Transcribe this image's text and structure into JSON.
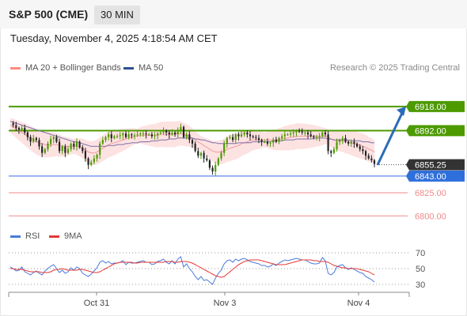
{
  "header": {
    "symbol": "S&P 500 (CME)",
    "timeframe": "30 MIN",
    "datetime": "Tuesday, November 4, 2025 4:18:54 AM CET"
  },
  "legend": {
    "items": [
      {
        "label": "MA 20 + Bollinger Bands",
        "color": "#ff8a80"
      },
      {
        "label": "MA 50",
        "color": "#2e4f8f"
      }
    ],
    "research": "Research © 2025 Trading Central"
  },
  "rsi_legend": {
    "items": [
      {
        "label": "RSI",
        "color": "#4a7bdc"
      },
      {
        "label": "9MA",
        "color": "#e53935"
      }
    ]
  },
  "colors": {
    "resistance": "#4c9a00",
    "support_blue": "#2f6fdc",
    "support_red": "#f08a8a",
    "last_price": "#333333",
    "arrow": "#2b6cb8",
    "band": "#fde2e2",
    "ma20": "#f19b9b",
    "ma50": "#7e6fa8",
    "candle_up": "#4c9a00",
    "candle_down": "#222222"
  },
  "chart_data": [
    {
      "type": "candlestick",
      "title": "S&P 500 (CME)",
      "ylim": [
        6790,
        6935
      ],
      "x_labels": [
        "Oct 31",
        "Nov 3",
        "Nov 4"
      ],
      "last_price": 6855.25,
      "levels": [
        {
          "value": 6918.0,
          "label": "6918.00",
          "kind": "resistance"
        },
        {
          "value": 6892.0,
          "label": "6892.00",
          "kind": "resistance"
        },
        {
          "value": 6855.25,
          "label": "6855.25",
          "kind": "last"
        },
        {
          "value": 6843.0,
          "label": "6843.00",
          "kind": "support"
        },
        {
          "value": 6825.0,
          "label": "6825.00",
          "kind": "support-minor"
        },
        {
          "value": 6800.0,
          "label": "6800.00",
          "kind": "support-minor"
        }
      ],
      "arrow": {
        "from": 6855,
        "to": 6918
      },
      "series": [
        {
          "name": "Price",
          "values": [
            6900,
            6898,
            6895,
            6893,
            6895,
            6890,
            6885,
            6880,
            6884,
            6882,
            6875,
            6868,
            6872,
            6878,
            6883,
            6885,
            6880,
            6870,
            6875,
            6868,
            6872,
            6878,
            6875,
            6880,
            6874,
            6870,
            6862,
            6855,
            6858,
            6862,
            6866,
            6878,
            6882,
            6885,
            6888,
            6884,
            6886,
            6886,
            6887,
            6889,
            6885,
            6888,
            6887,
            6887,
            6888,
            6889,
            6889,
            6888,
            6888,
            6886,
            6887,
            6889,
            6890,
            6892,
            6890,
            6888,
            6890,
            6888,
            6893,
            6896,
            6885,
            6888,
            6882,
            6878,
            6870,
            6865,
            6868,
            6862,
            6860,
            6852,
            6848,
            6855,
            6862,
            6868,
            6878,
            6884,
            6885,
            6882,
            6888,
            6886,
            6888,
            6890,
            6888,
            6886,
            6885,
            6884,
            6882,
            6880,
            6880,
            6878,
            6879,
            6882,
            6880,
            6884,
            6886,
            6888,
            6888,
            6889,
            6890,
            6892,
            6891,
            6890,
            6890,
            6888,
            6886,
            6885,
            6885,
            6886,
            6890,
            6888,
            6870,
            6868,
            6872,
            6880,
            6882,
            6884,
            6880,
            6878,
            6880,
            6878,
            6875,
            6872,
            6870,
            6865,
            6862,
            6860,
            6856
          ]
        },
        {
          "name": "MA 20",
          "values": [
            6898,
            6896,
            6894,
            6892,
            6890,
            6888,
            6886,
            6884,
            6882,
            6880,
            6879,
            6878,
            6877,
            6877,
            6877,
            6877,
            6877,
            6876,
            6875,
            6875,
            6875,
            6875,
            6875,
            6875,
            6874,
            6873,
            6871,
            6869,
            6868,
            6868,
            6869,
            6871,
            6873,
            6875,
            6877,
            6878,
            6879,
            6880,
            6881,
            6882,
            6883,
            6884,
            6885,
            6886,
            6886,
            6887,
            6887,
            6887,
            6887,
            6887,
            6887,
            6887,
            6888,
            6888,
            6888,
            6888,
            6888,
            6888,
            6889,
            6889,
            6888,
            6887,
            6886,
            6884,
            6882,
            6880,
            6878,
            6876,
            6874,
            6872,
            6870,
            6869,
            6869,
            6869,
            6870,
            6872,
            6873,
            6874,
            6875,
            6876,
            6878,
            6879,
            6880,
            6881,
            6882,
            6882,
            6882,
            6882,
            6882,
            6882,
            6882,
            6882,
            6882,
            6883,
            6883,
            6884,
            6884,
            6885,
            6885,
            6886,
            6886,
            6886,
            6886,
            6886,
            6886,
            6886,
            6886,
            6886,
            6886,
            6886,
            6885,
            6883,
            6882,
            6881,
            6881,
            6881,
            6880,
            6880,
            6879,
            6878,
            6877,
            6876,
            6875,
            6874,
            6872,
            6871,
            6869
          ]
        },
        {
          "name": "MA 50",
          "values": [
            6902,
            6901,
            6900,
            6899,
            6898,
            6897,
            6896,
            6895,
            6894,
            6893,
            6892,
            6891,
            6890,
            6889,
            6888,
            6887,
            6886,
            6885,
            6884,
            6883,
            6882,
            6881,
            6880,
            6880,
            6879,
            6878,
            6877,
            6876,
            6875,
            6875,
            6875,
            6875,
            6875,
            6875,
            6876,
            6876,
            6876,
            6877,
            6877,
            6877,
            6878,
            6878,
            6879,
            6879,
            6879,
            6880,
            6880,
            6880,
            6880,
            6881,
            6881,
            6881,
            6882,
            6882,
            6882,
            6883,
            6883,
            6883,
            6884,
            6884,
            6884,
            6884,
            6884,
            6884,
            6883,
            6883,
            6882,
            6882,
            6881,
            6880,
            6879,
            6879,
            6878,
            6878,
            6878,
            6878,
            6878,
            6878,
            6878,
            6879,
            6879,
            6879,
            6879,
            6879,
            6880,
            6880,
            6880,
            6880,
            6880,
            6880,
            6880,
            6881,
            6881,
            6881,
            6881,
            6882,
            6882,
            6882,
            6882,
            6883,
            6883,
            6883,
            6883,
            6883,
            6883,
            6884,
            6884,
            6884,
            6884,
            6884,
            6883,
            6883,
            6882,
            6882,
            6882,
            6882,
            6882,
            6882,
            6881,
            6881,
            6881,
            6881,
            6880,
            6880,
            6880,
            6879,
            6879
          ]
        }
      ]
    },
    {
      "type": "line",
      "title": "RSI",
      "ylim": [
        20,
        80
      ],
      "y_ticks": [
        30,
        50,
        70
      ],
      "series": [
        {
          "name": "RSI",
          "values": [
            52,
            50,
            47,
            48,
            52,
            46,
            44,
            42,
            45,
            47,
            44,
            42,
            47,
            50,
            53,
            55,
            50,
            45,
            48,
            44,
            46,
            51,
            48,
            52,
            50,
            44,
            42,
            40,
            43,
            47,
            51,
            58,
            60,
            57,
            59,
            56,
            57,
            57,
            58,
            60,
            55,
            58,
            57,
            57,
            58,
            59,
            60,
            58,
            58,
            55,
            56,
            59,
            60,
            62,
            58,
            56,
            60,
            56,
            62,
            65,
            52,
            56,
            50,
            46,
            40,
            36,
            40,
            35,
            36,
            33,
            30,
            38,
            44,
            48,
            56,
            60,
            61,
            58,
            62,
            60,
            62,
            63,
            61,
            59,
            58,
            57,
            56,
            54,
            54,
            52,
            53,
            56,
            54,
            57,
            59,
            61,
            60,
            61,
            62,
            63,
            62,
            61,
            61,
            59,
            57,
            56,
            56,
            57,
            64,
            60,
            44,
            42,
            45,
            52,
            54,
            55,
            51,
            49,
            51,
            49,
            47,
            45,
            44,
            40,
            38,
            36,
            33
          ]
        },
        {
          "name": "9MA",
          "values": [
            50,
            50,
            49,
            49,
            49,
            48,
            47,
            46,
            46,
            46,
            46,
            45,
            45,
            45,
            46,
            48,
            49,
            49,
            50,
            49,
            48,
            48,
            48,
            48,
            49,
            49,
            48,
            47,
            46,
            45,
            45,
            46,
            48,
            50,
            52,
            54,
            56,
            57,
            58,
            58,
            58,
            58,
            58,
            57,
            57,
            58,
            58,
            58,
            58,
            58,
            58,
            58,
            58,
            58,
            59,
            59,
            59,
            58,
            58,
            59,
            59,
            59,
            58,
            57,
            55,
            53,
            51,
            49,
            47,
            45,
            43,
            41,
            40,
            39,
            40,
            43,
            46,
            49,
            52,
            55,
            57,
            59,
            60,
            61,
            61,
            61,
            61,
            60,
            59,
            58,
            57,
            56,
            55,
            55,
            55,
            55,
            56,
            57,
            58,
            59,
            60,
            61,
            61,
            61,
            61,
            60,
            60,
            59,
            59,
            59,
            58,
            56,
            54,
            53,
            52,
            51,
            51,
            50,
            50,
            50,
            50,
            49,
            48,
            47,
            46,
            44,
            42
          ]
        }
      ]
    }
  ]
}
